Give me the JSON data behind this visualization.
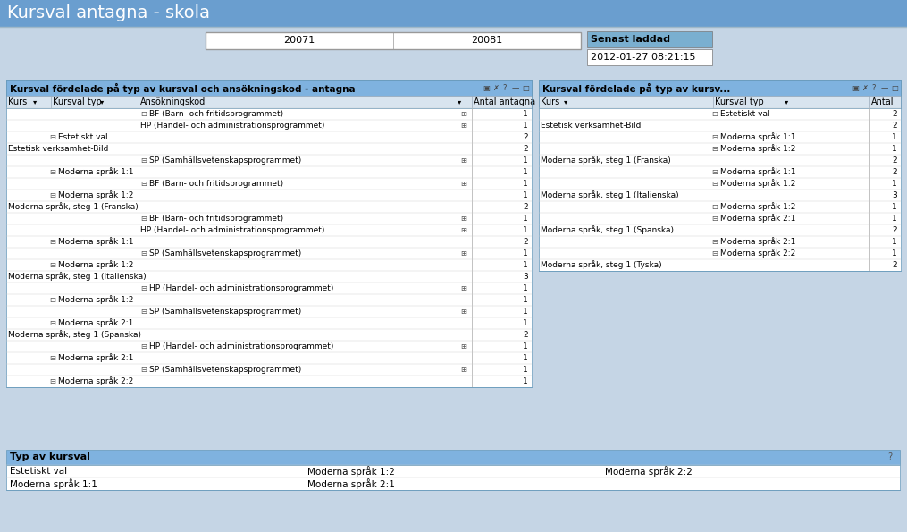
{
  "title": "Kursval antagna - skola",
  "bg_color": "#c5d5e5",
  "top_bar_color": "#6a9ecf",
  "table_title_color": "#7fb2df",
  "header_row_color": "#d8e4ef",
  "white": "#ffffff",
  "black": "#000000",
  "table1_title": "Kursval fördelade på typ av kursval och ansökningskod - antagna",
  "table2_title": "Kursval fördelade på typ av kursv...",
  "period_box1": "20071",
  "period_box2": "20081",
  "senast_laddad": "Senast laddad",
  "timestamp": "2012-01-27 08:21:15",
  "table1_headers": [
    "Kurs",
    "Kursval typ",
    "Ansökningskod",
    "Antal antagna"
  ],
  "table2_headers": [
    "Kurs",
    "Kursval typ",
    "Antal"
  ],
  "table1_rows": [
    {
      "indent": 2,
      "col1": "",
      "col2": "",
      "col3": "BF (Barn- och fritidsprogrammet)",
      "col4": "1",
      "has_minus": true,
      "has_plus": true
    },
    {
      "indent": 2,
      "col1": "",
      "col2": "",
      "col3": "HP (Handel- och administrationsprogrammet)",
      "col4": "1",
      "has_minus": false,
      "has_plus": true
    },
    {
      "indent": 1,
      "col1": "",
      "col2": "Estetiskt val",
      "col3": "",
      "col4": "2",
      "has_minus": true,
      "has_plus": false
    },
    {
      "indent": 0,
      "col1": "Estetisk verksamhet-Bild",
      "col2": "",
      "col3": "",
      "col4": "2",
      "has_minus": false,
      "has_plus": false
    },
    {
      "indent": 2,
      "col1": "",
      "col2": "",
      "col3": "SP (Samhällsvetenskapsprogrammet)",
      "col4": "1",
      "has_minus": true,
      "has_plus": true
    },
    {
      "indent": 1,
      "col1": "",
      "col2": "Moderna språk 1:1",
      "col3": "",
      "col4": "1",
      "has_minus": true,
      "has_plus": false
    },
    {
      "indent": 2,
      "col1": "",
      "col2": "",
      "col3": "BF (Barn- och fritidsprogrammet)",
      "col4": "1",
      "has_minus": true,
      "has_plus": true
    },
    {
      "indent": 1,
      "col1": "",
      "col2": "Moderna språk 1:2",
      "col3": "",
      "col4": "1",
      "has_minus": false,
      "has_plus": false
    },
    {
      "indent": 0,
      "col1": "Moderna språk, steg 1 (Franska)",
      "col2": "",
      "col3": "",
      "col4": "2",
      "has_minus": false,
      "has_plus": false
    },
    {
      "indent": 2,
      "col1": "",
      "col2": "",
      "col3": "BF (Barn- och fritidsprogrammet)",
      "col4": "1",
      "has_minus": true,
      "has_plus": true
    },
    {
      "indent": 2,
      "col1": "",
      "col2": "",
      "col3": "HP (Handel- och administrationsprogrammet)",
      "col4": "1",
      "has_minus": false,
      "has_plus": true
    },
    {
      "indent": 1,
      "col1": "",
      "col2": "Moderna språk 1:1",
      "col3": "",
      "col4": "2",
      "has_minus": true,
      "has_plus": false
    },
    {
      "indent": 2,
      "col1": "",
      "col2": "",
      "col3": "SP (Samhällsvetenskapsprogrammet)",
      "col4": "1",
      "has_minus": true,
      "has_plus": true
    },
    {
      "indent": 1,
      "col1": "",
      "col2": "Moderna språk 1:2",
      "col3": "",
      "col4": "1",
      "has_minus": false,
      "has_plus": false
    },
    {
      "indent": 0,
      "col1": "Moderna språk, steg 1 (Italienska)",
      "col2": "",
      "col3": "",
      "col4": "3",
      "has_minus": false,
      "has_plus": false
    },
    {
      "indent": 2,
      "col1": "",
      "col2": "",
      "col3": "HP (Handel- och administrationsprogrammet)",
      "col4": "1",
      "has_minus": true,
      "has_plus": true
    },
    {
      "indent": 1,
      "col1": "",
      "col2": "Moderna språk 1:2",
      "col3": "",
      "col4": "1",
      "has_minus": true,
      "has_plus": false
    },
    {
      "indent": 2,
      "col1": "",
      "col2": "",
      "col3": "SP (Samhällsvetenskapsprogrammet)",
      "col4": "1",
      "has_minus": true,
      "has_plus": true
    },
    {
      "indent": 1,
      "col1": "",
      "col2": "Moderna språk 2:1",
      "col3": "",
      "col4": "1",
      "has_minus": false,
      "has_plus": false
    },
    {
      "indent": 0,
      "col1": "Moderna språk, steg 1 (Spanska)",
      "col2": "",
      "col3": "",
      "col4": "2",
      "has_minus": false,
      "has_plus": false
    },
    {
      "indent": 2,
      "col1": "",
      "col2": "",
      "col3": "HP (Handel- och administrationsprogrammet)",
      "col4": "1",
      "has_minus": true,
      "has_plus": true
    },
    {
      "indent": 1,
      "col1": "",
      "col2": "Moderna språk 2:1",
      "col3": "",
      "col4": "1",
      "has_minus": true,
      "has_plus": false
    },
    {
      "indent": 2,
      "col1": "",
      "col2": "",
      "col3": "SP (Samhällsvetenskapsprogrammet)",
      "col4": "1",
      "has_minus": true,
      "has_plus": true
    },
    {
      "indent": 1,
      "col1": "",
      "col2": "Moderna språk 2:2",
      "col3": "",
      "col4": "1",
      "has_minus": false,
      "has_plus": false
    }
  ],
  "table2_rows": [
    {
      "indent": 1,
      "col1": "",
      "col2": "Estetiskt val",
      "col3": "2",
      "has_minus": true
    },
    {
      "indent": 0,
      "col1": "Estetisk verksamhet-Bild",
      "col2": "",
      "col3": "2",
      "has_minus": false
    },
    {
      "indent": 1,
      "col1": "",
      "col2": "Moderna språk 1:1",
      "col3": "1",
      "has_minus": false
    },
    {
      "indent": 1,
      "col1": "",
      "col2": "Moderna språk 1:2",
      "col3": "1",
      "has_minus": false
    },
    {
      "indent": 0,
      "col1": "Moderna språk, steg 1 (Franska)",
      "col2": "",
      "col3": "2",
      "has_minus": false
    },
    {
      "indent": 1,
      "col1": "",
      "col2": "Moderna språk 1:1",
      "col3": "2",
      "has_minus": false
    },
    {
      "indent": 1,
      "col1": "",
      "col2": "Moderna språk 1:2",
      "col3": "1",
      "has_minus": false
    },
    {
      "indent": 0,
      "col1": "Moderna språk, steg 1 (Italienska)",
      "col2": "",
      "col3": "3",
      "has_minus": false
    },
    {
      "indent": 1,
      "col1": "",
      "col2": "Moderna språk 1:2",
      "col3": "1",
      "has_minus": false
    },
    {
      "indent": 1,
      "col1": "",
      "col2": "Moderna språk 2:1",
      "col3": "1",
      "has_minus": false
    },
    {
      "indent": 0,
      "col1": "Moderna språk, steg 1 (Spanska)",
      "col2": "",
      "col3": "2",
      "has_minus": false
    },
    {
      "indent": 1,
      "col1": "",
      "col2": "Moderna språk 2:1",
      "col3": "1",
      "has_minus": false
    },
    {
      "indent": 1,
      "col1": "",
      "col2": "Moderna språk 2:2",
      "col3": "1",
      "has_minus": false
    },
    {
      "indent": 0,
      "col1": "Moderna språk, steg 1 (Tyska)",
      "col2": "",
      "col3": "2",
      "has_minus": false
    }
  ],
  "typ_av_kursval_title": "Typ av kursval",
  "typ_av_kursval_items": [
    [
      "Estetiskt val",
      "Moderna språk 1:2",
      "Moderna språk 2:2"
    ],
    [
      "Moderna språk 1:1",
      "Moderna språk 2:1",
      ""
    ]
  ]
}
